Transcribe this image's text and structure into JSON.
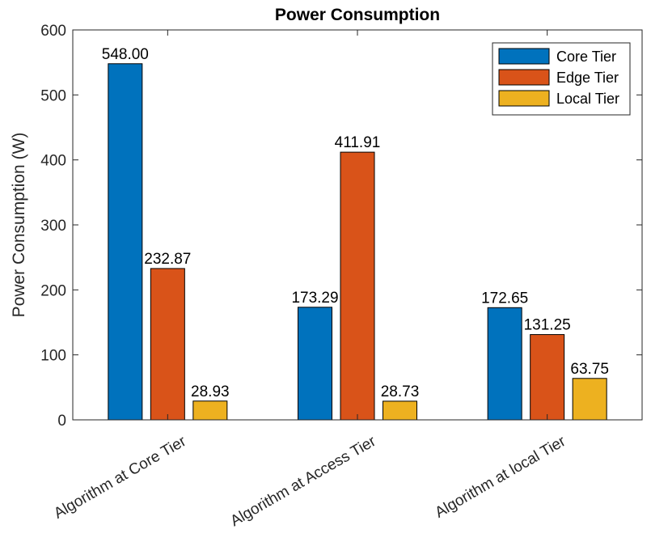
{
  "chart_data": {
    "type": "bar",
    "title": "Power Consumption",
    "xlabel": "",
    "ylabel": "Power Consumption (W)",
    "ylim": [
      0,
      600
    ],
    "yticks": [
      0,
      100,
      200,
      300,
      400,
      500,
      600
    ],
    "grid": false,
    "legend_position": "top-right",
    "categories": [
      "Algorithm at Core Tier",
      "Algorithm at Access Tier",
      "Algorithm at local Tier"
    ],
    "series": [
      {
        "name": "Core Tier",
        "color": "#0072BD",
        "values": [
          548.0,
          173.29,
          172.65
        ],
        "labels": [
          "548.00",
          "173.29",
          "172.65"
        ]
      },
      {
        "name": "Edge Tier",
        "color": "#D95319",
        "values": [
          232.87,
          411.91,
          131.25
        ],
        "labels": [
          "232.87",
          "411.91",
          "131.25"
        ]
      },
      {
        "name": "Local Tier",
        "color": "#EDB120",
        "values": [
          28.93,
          28.73,
          63.75
        ],
        "labels": [
          "28.93",
          "28.73",
          "63.75"
        ]
      }
    ]
  }
}
